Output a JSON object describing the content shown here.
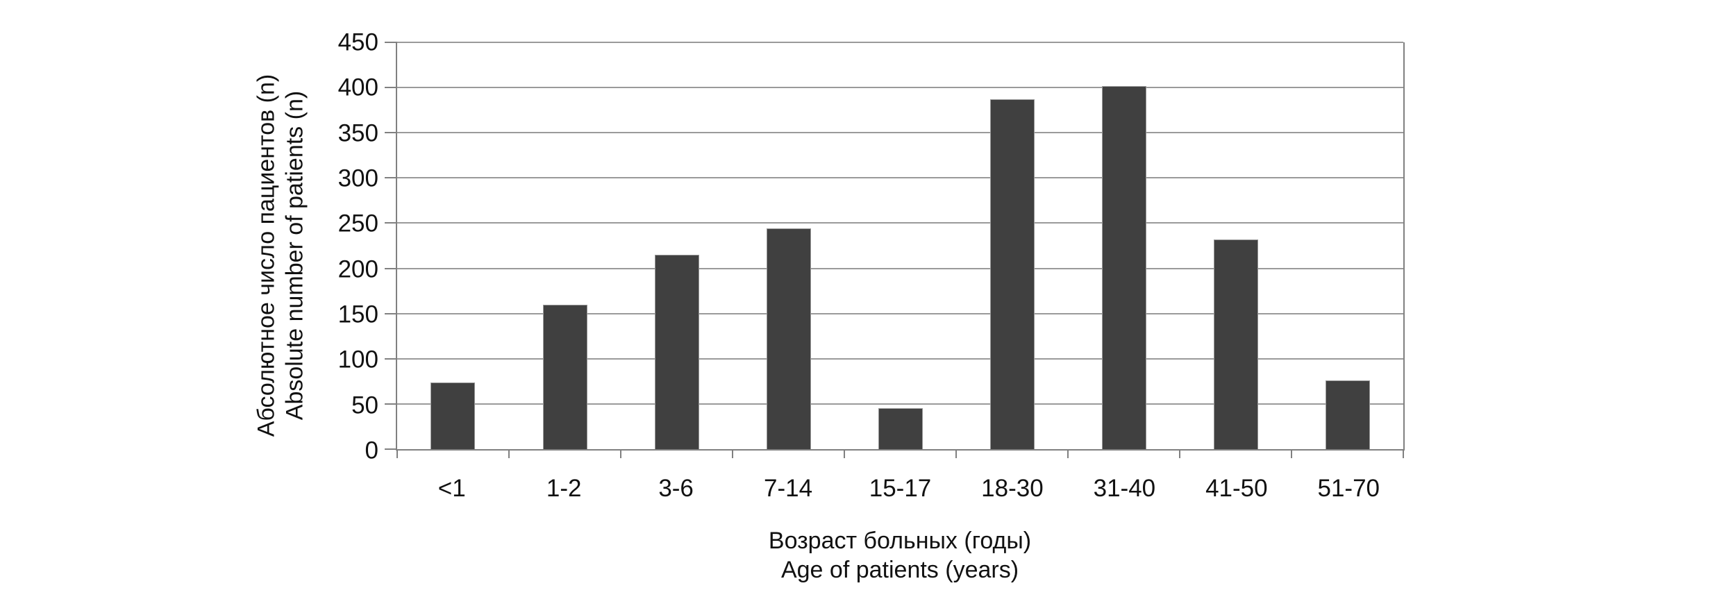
{
  "chart_data": {
    "type": "bar",
    "categories": [
      "<1",
      "1-2",
      "3-6",
      "7-14",
      "15-17",
      "18-30",
      "31-40",
      "41-50",
      "51-70"
    ],
    "values": [
      74,
      160,
      215,
      244,
      45,
      387,
      402,
      232,
      76
    ],
    "title": "",
    "xlabel_ru": "Возраст больных (годы)",
    "xlabel_en": "Age of patients (years)",
    "ylabel_ru": "Абсолютное число пациентов (n)",
    "ylabel_en": "Absolute number of patients (n)",
    "ylim": [
      0,
      450
    ],
    "yticks": [
      0,
      50,
      100,
      150,
      200,
      250,
      300,
      350,
      400,
      450
    ],
    "grid": true,
    "legend": false,
    "bar_color": "#404040",
    "gridline_color": "#9a9a9a",
    "axis_color": "#808080",
    "text_color": "#111111",
    "background_color": "#ffffff"
  }
}
